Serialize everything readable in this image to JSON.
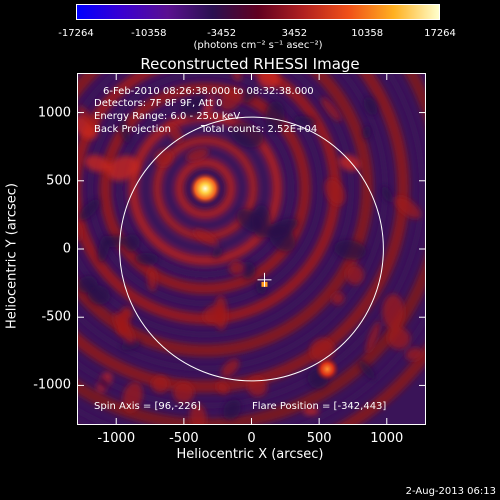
{
  "colorbar": {
    "ticks": [
      "-17264",
      "-10358",
      "-3452",
      "3452",
      "10358",
      "17264"
    ],
    "tick_values": [
      -17264,
      -10358,
      -3452,
      3452,
      10358,
      17264
    ],
    "unit": "(photons cm⁻² s⁻¹ asec⁻²)",
    "colors": [
      "#0000ff",
      "#3a00d0",
      "#5a1090",
      "#2a1050",
      "#600020",
      "#b02020",
      "#f05018",
      "#ffb020",
      "#ffffcc"
    ]
  },
  "title": "Reconstructed RHESSI Image",
  "annotations": {
    "time": "6-Feb-2010 08:26:38.000 to 08:32:38.000",
    "detectors": "Detectors: 7F 8F 9F, Att 0",
    "energy": "Energy Range: 6.0 - 25.0 keV",
    "method": "Back Projection",
    "counts": "Total counts: 2.52E+04",
    "spin_axis": "Spin Axis = [96,-226]",
    "flare_position": "Flare Position = [-342,443]"
  },
  "axes": {
    "xlabel": "Heliocentric X (arcsec)",
    "ylabel": "Heliocentric Y (arcsec)",
    "xticks": [
      "-1000",
      "-500",
      "0",
      "500",
      "1000"
    ],
    "xtick_values": [
      -1000,
      -500,
      0,
      500,
      1000
    ],
    "yticks": [
      "1000",
      "500",
      "0",
      "-500",
      "-1000"
    ],
    "ytick_values": [
      1000,
      500,
      0,
      -500,
      -1000
    ],
    "xlim": [
      -1290,
      1290
    ],
    "ylim": [
      -1290,
      1290
    ]
  },
  "features": {
    "solar_limb_radius_arcsec": 975,
    "source_position_arcsec": [
      -342,
      443
    ],
    "spin_axis_arcsec": [
      96,
      -226
    ]
  },
  "timestamp": "2-Aug-2013 06:13"
}
